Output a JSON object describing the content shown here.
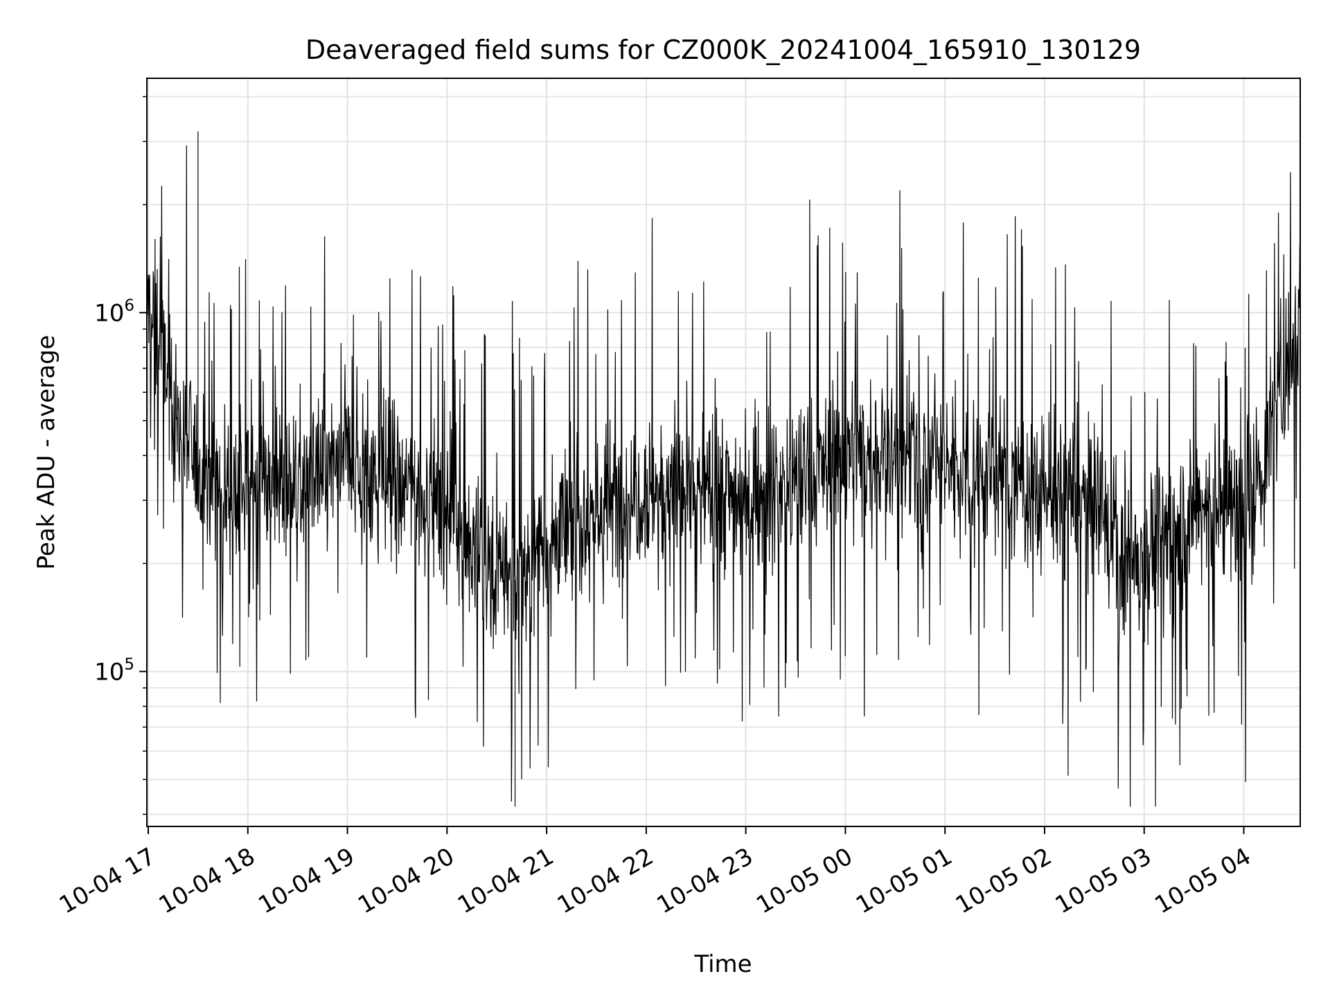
{
  "chart_data": {
    "type": "line",
    "title": "Deaveraged field sums for CZ000K_20241004_165910_130129",
    "xlabel": "Time",
    "ylabel": "Peak ADU - average",
    "yscale": "log",
    "xlim": [
      "2024-10-04 16:59:10",
      "2024-10-05 04:34:00"
    ],
    "ylim": [
      37000,
      4500000
    ],
    "grid": "on (major and minor, light gray)",
    "legend": "none",
    "x_ticks": [
      "2024-10-04 17:00",
      "2024-10-04 18:00",
      "2024-10-04 19:00",
      "2024-10-04 20:00",
      "2024-10-04 21:00",
      "2024-10-04 22:00",
      "2024-10-04 23:00",
      "2024-10-05 00:00",
      "2024-10-05 01:00",
      "2024-10-05 02:00",
      "2024-10-05 03:00",
      "2024-10-05 04:00"
    ],
    "x_tick_labels": [
      "10-04 17",
      "10-04 18",
      "10-04 19",
      "10-04 20",
      "10-04 21",
      "10-04 22",
      "10-04 23",
      "10-05 00",
      "10-05 01",
      "10-05 02",
      "10-05 03",
      "10-05 04"
    ],
    "y_ticks": [
      100000,
      1000000
    ],
    "y_tick_label_base": [
      "10",
      "10"
    ],
    "y_tick_label_exp": [
      "5",
      "6"
    ],
    "series": [
      {
        "color": "#000000",
        "baseline": {
          "x": [
            "2024-10-04 16:59",
            "2024-10-04 17:10",
            "2024-10-04 17:20",
            "2024-10-04 17:30",
            "2024-10-04 17:45",
            "2024-10-04 18:00",
            "2024-10-04 18:30",
            "2024-10-04 19:00",
            "2024-10-04 19:30",
            "2024-10-04 20:00",
            "2024-10-04 20:20",
            "2024-10-04 20:40",
            "2024-10-04 21:00",
            "2024-10-04 21:30",
            "2024-10-04 22:00",
            "2024-10-04 22:30",
            "2024-10-04 23:00",
            "2024-10-04 23:30",
            "2024-10-05 00:00",
            "2024-10-05 00:30",
            "2024-10-05 01:00",
            "2024-10-05 01:30",
            "2024-10-05 02:00",
            "2024-10-05 02:30",
            "2024-10-05 02:50",
            "2024-10-05 03:10",
            "2024-10-05 03:40",
            "2024-10-05 04:00",
            "2024-10-05 04:15",
            "2024-10-05 04:25",
            "2024-10-05 04:34"
          ],
          "y": [
            1100000,
            700000,
            450000,
            380000,
            320000,
            330000,
            340000,
            380000,
            340000,
            280000,
            200000,
            180000,
            230000,
            280000,
            330000,
            320000,
            310000,
            330000,
            400000,
            400000,
            380000,
            350000,
            320000,
            290000,
            200000,
            230000,
            300000,
            260000,
            420000,
            700000,
            1000000
          ]
        },
        "extremes": {
          "max": 3200000,
          "max_at": "2024-10-04 17:30",
          "min": 42000,
          "min_at": "2024-10-04 20:41"
        }
      }
    ]
  }
}
